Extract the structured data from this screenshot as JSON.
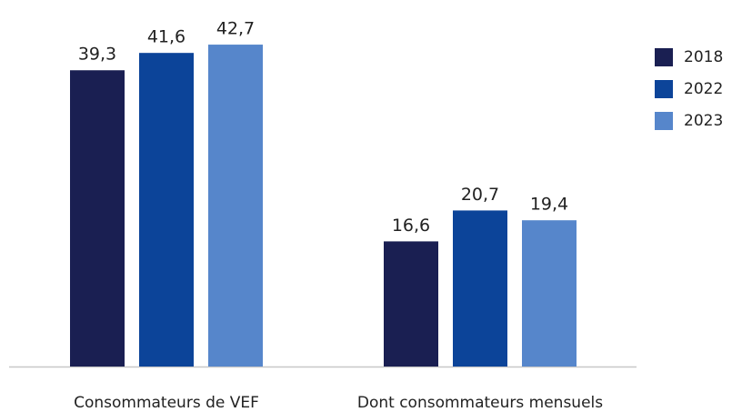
{
  "chart_data": {
    "type": "bar",
    "categories": [
      "Consommateurs de VEF",
      "Dont consommateurs mensuels"
    ],
    "series": [
      {
        "name": "2018",
        "color": "#1a1f52",
        "values": [
          39.3,
          16.6
        ],
        "value_labels": [
          "39,3",
          "16,6"
        ]
      },
      {
        "name": "2022",
        "color": "#0c4499",
        "values": [
          41.6,
          20.7
        ],
        "value_labels": [
          "41,6",
          "20,7"
        ]
      },
      {
        "name": "2023",
        "color": "#5686cb",
        "values": [
          42.7,
          19.4
        ],
        "value_labels": [
          "42,7",
          "19,4"
        ]
      }
    ],
    "ylim": [
      0,
      45
    ],
    "legend": "right"
  }
}
